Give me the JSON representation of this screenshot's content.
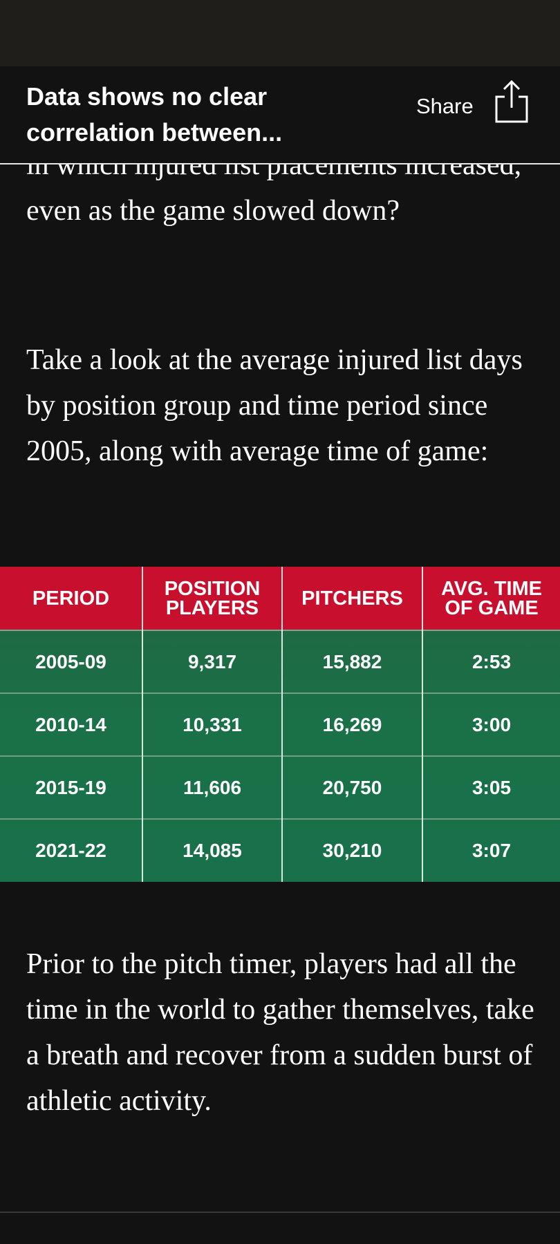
{
  "header": {
    "title": "Data shows no clear correlation between...",
    "share_label": "Share",
    "share_icon": "share-icon"
  },
  "article": {
    "partial_paragraph": "in which injured list placements increased, even as the game slowed down?",
    "intro_paragraph": "Take a look at the average injured list days by position group and time period since 2005, along with average time of game:",
    "closing_paragraph": "Prior to the pitch timer, players had all the time in the world to gather themselves, take a breath and recover from a sudden burst of athletic activity."
  },
  "table": {
    "header_color": "#c8102e",
    "body_color": "#1a7148",
    "columns": [
      "PERIOD",
      "POSITION PLAYERS",
      "PITCHERS",
      "AVG. TIME OF GAME"
    ],
    "rows": [
      [
        "2005-09",
        "9,317",
        "15,882",
        "2:53"
      ],
      [
        "2010-14",
        "10,331",
        "16,269",
        "3:00"
      ],
      [
        "2015-19",
        "11,606",
        "20,750",
        "3:05"
      ],
      [
        "2021-22",
        "14,085",
        "30,210",
        "3:07"
      ]
    ]
  }
}
